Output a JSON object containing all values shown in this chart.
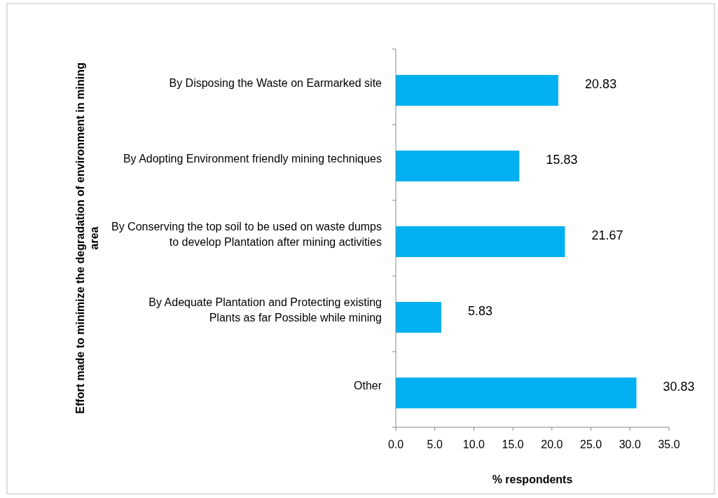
{
  "chart_data": {
    "type": "bar",
    "orientation": "horizontal",
    "ylabel": "Effort made to minimize the degradation of environment in mining area",
    "xlabel": "% respondents",
    "categories": [
      "By Disposing the Waste on Earmarked site",
      "By Adopting Environment friendly mining techniques",
      "By Conserving the top soil to be used on waste dumps to develop Plantation after mining activities",
      "By Adequate Plantation and Protecting existing Plants as far Possible while mining",
      "Other"
    ],
    "values": [
      20.83,
      15.83,
      21.67,
      5.83,
      30.83
    ],
    "color": "#00b0f0",
    "data_labels": true,
    "xlim": [
      0,
      35
    ],
    "xticks": [
      {
        "value": 0,
        "label": "0.0"
      },
      {
        "value": 5,
        "label": "5.0"
      },
      {
        "value": 10,
        "label": "10.0"
      },
      {
        "value": 15,
        "label": "15.0"
      },
      {
        "value": 20,
        "label": "20.0"
      },
      {
        "value": 25,
        "label": "25.0"
      },
      {
        "value": 30,
        "label": "30.0"
      },
      {
        "value": 35,
        "label": "35.0"
      }
    ]
  }
}
